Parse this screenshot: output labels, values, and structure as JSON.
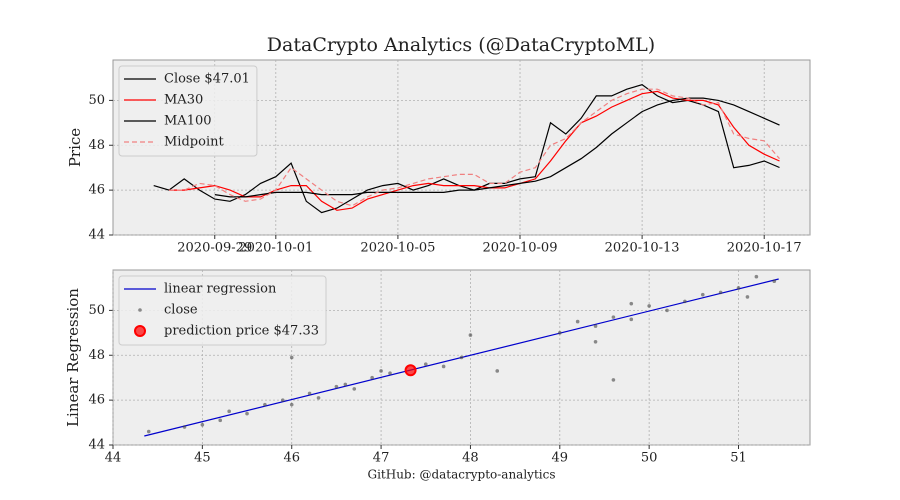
{
  "chart_data": [
    {
      "type": "line",
      "title": "DataCrypto Analytics (@DataCryptoML)",
      "ylabel": "Price",
      "x": [
        "2020-09-27T00:00",
        "2020-09-27T12:00",
        "2020-09-28T00:00",
        "2020-09-28T12:00",
        "2020-09-29T00:00",
        "2020-09-29T12:00",
        "2020-09-30T00:00",
        "2020-09-30T12:00",
        "2020-10-01T00:00",
        "2020-10-01T12:00",
        "2020-10-02T00:00",
        "2020-10-02T12:00",
        "2020-10-03T00:00",
        "2020-10-03T12:00",
        "2020-10-04T00:00",
        "2020-10-04T12:00",
        "2020-10-05T00:00",
        "2020-10-05T12:00",
        "2020-10-06T00:00",
        "2020-10-06T12:00",
        "2020-10-07T00:00",
        "2020-10-07T12:00",
        "2020-10-08T00:00",
        "2020-10-08T12:00",
        "2020-10-09T00:00",
        "2020-10-09T12:00",
        "2020-10-10T00:00",
        "2020-10-10T12:00",
        "2020-10-11T00:00",
        "2020-10-11T12:00",
        "2020-10-12T00:00",
        "2020-10-12T12:00",
        "2020-10-13T00:00",
        "2020-10-13T12:00",
        "2020-10-14T00:00",
        "2020-10-14T12:00",
        "2020-10-15T00:00",
        "2020-10-15T12:00",
        "2020-10-16T00:00",
        "2020-10-16T12:00",
        "2020-10-17T00:00",
        "2020-10-17T12:00"
      ],
      "series": [
        {
          "name": "Close $47.01",
          "color": "#000000",
          "style": "solid",
          "values": [
            46.2,
            46.0,
            46.5,
            46.0,
            45.6,
            45.5,
            45.8,
            46.3,
            46.6,
            47.2,
            45.5,
            45.0,
            45.2,
            45.6,
            46.0,
            46.2,
            46.3,
            46.0,
            46.2,
            46.5,
            46.2,
            46.0,
            46.3,
            46.3,
            46.5,
            46.6,
            49.0,
            48.5,
            49.2,
            50.2,
            50.2,
            50.5,
            50.7,
            50.2,
            49.9,
            50.0,
            49.8,
            49.5,
            47.0,
            47.1,
            47.3,
            47.01
          ]
        },
        {
          "name": "MA30",
          "color": "#ff0000",
          "style": "solid",
          "values": [
            null,
            46.0,
            46.0,
            46.1,
            46.2,
            46.0,
            45.7,
            45.7,
            46.0,
            46.2,
            46.2,
            45.5,
            45.1,
            45.2,
            45.6,
            45.8,
            46.0,
            46.2,
            46.3,
            46.2,
            46.2,
            46.2,
            46.1,
            46.1,
            46.3,
            46.5,
            47.3,
            48.2,
            49.0,
            49.3,
            49.7,
            50.0,
            50.3,
            50.4,
            50.1,
            50.0,
            50.0,
            49.8,
            48.8,
            48.0,
            47.6,
            47.3
          ]
        },
        {
          "name": "MA100",
          "color": "#000000",
          "style": "solid",
          "values": [
            null,
            null,
            null,
            null,
            45.8,
            45.7,
            45.7,
            45.8,
            45.9,
            45.9,
            45.9,
            45.8,
            45.8,
            45.8,
            45.9,
            45.9,
            45.9,
            45.9,
            45.9,
            45.9,
            46.0,
            46.0,
            46.1,
            46.2,
            46.3,
            46.4,
            46.6,
            47.0,
            47.4,
            47.9,
            48.5,
            49.0,
            49.5,
            49.8,
            50.0,
            50.1,
            50.1,
            50.0,
            49.8,
            49.5,
            49.2,
            48.9
          ]
        },
        {
          "name": "Midpoint",
          "color": "#f08080",
          "style": "dashed",
          "values": [
            null,
            46.0,
            46.0,
            46.3,
            46.2,
            45.8,
            45.5,
            45.6,
            46.0,
            47.0,
            46.5,
            46.0,
            45.5,
            45.3,
            45.7,
            46.0,
            46.1,
            46.3,
            46.5,
            46.6,
            46.7,
            46.7,
            46.3,
            46.3,
            46.8,
            47.0,
            48.0,
            48.3,
            49.0,
            49.5,
            50.0,
            50.3,
            50.5,
            50.5,
            50.2,
            50.1,
            49.8,
            49.9,
            48.5,
            48.3,
            48.2,
            47.4
          ]
        }
      ],
      "xlim": [
        "2020-09-25T16:00",
        "2020-10-18T12:00"
      ],
      "xticks": [
        "2020-09-29",
        "2020-10-01",
        "2020-10-05",
        "2020-10-09",
        "2020-10-13",
        "2020-10-17"
      ],
      "ylim": [
        44,
        51.8
      ],
      "yticks": [
        44,
        46,
        48,
        50
      ],
      "grid": true,
      "legend": "upper left"
    },
    {
      "type": "scatter",
      "ylabel": "Linear Regression",
      "xlabel": "GitHub: @datacrypto-analytics",
      "series": [
        {
          "name": "linear regression",
          "color": "#0000cc",
          "kind": "line",
          "x": [
            44.35,
            51.45
          ],
          "values": [
            44.4,
            51.4
          ]
        },
        {
          "name": "close",
          "color": "#444444",
          "kind": "scatter",
          "x": [
            44.4,
            44.8,
            45.0,
            45.3,
            45.5,
            45.7,
            45.9,
            46.0,
            46.2,
            46.3,
            46.5,
            46.7,
            46.9,
            47.1,
            47.5,
            47.7,
            47.9,
            48.0,
            48.3,
            46.0,
            47.0,
            45.2,
            46.6,
            49.0,
            49.2,
            49.4,
            49.6,
            49.8,
            49.6,
            50.0,
            50.2,
            50.4,
            50.6,
            50.8,
            51.0,
            51.2,
            51.4,
            51.1,
            49.8,
            49.4
          ],
          "values": [
            44.6,
            44.8,
            44.9,
            45.5,
            45.4,
            45.8,
            46.0,
            45.8,
            46.3,
            46.1,
            46.6,
            46.5,
            47.0,
            47.2,
            47.6,
            47.5,
            47.9,
            48.9,
            47.3,
            47.9,
            47.3,
            45.1,
            46.7,
            49.0,
            49.5,
            49.3,
            49.7,
            49.6,
            46.9,
            50.2,
            50.0,
            50.4,
            50.7,
            50.8,
            51.0,
            51.5,
            51.3,
            50.6,
            50.3,
            48.6
          ]
        },
        {
          "name": "prediction price $47.33",
          "color": "#ff0000",
          "kind": "highlight",
          "x": [
            47.33
          ],
          "values": [
            47.33
          ]
        }
      ],
      "xlim": [
        44,
        51.8
      ],
      "xticks": [
        44,
        45,
        46,
        47,
        48,
        49,
        50,
        51
      ],
      "ylim": [
        44,
        51.8
      ],
      "yticks": [
        44,
        46,
        48,
        50
      ],
      "grid": true,
      "legend": "upper left"
    }
  ]
}
